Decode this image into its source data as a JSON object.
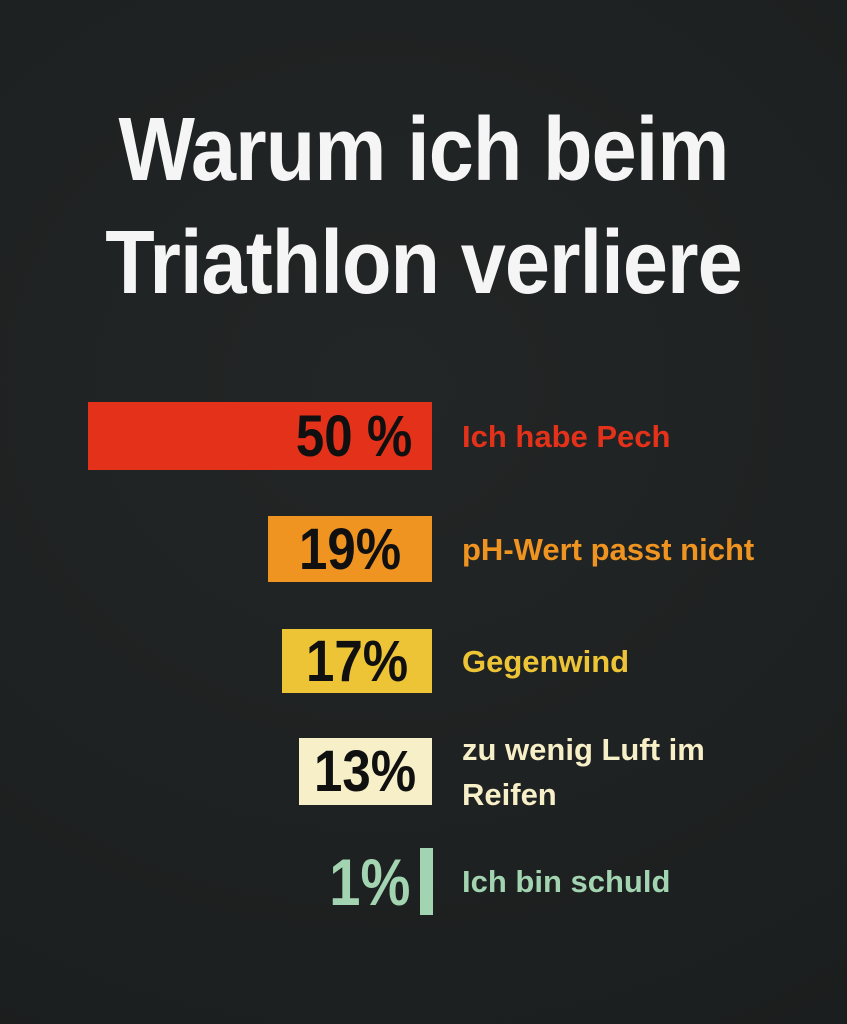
{
  "title": {
    "line1": "Warum ich beim",
    "line2": "Triathlon verliere",
    "color": "#f5f5f5"
  },
  "chart_data": {
    "type": "bar",
    "orientation": "horizontal",
    "title": "Warum ich beim Triathlon verliere",
    "unit": "%",
    "categories": [
      "Ich habe Pech",
      "pH-Wert passt nicht",
      "Gegenwind",
      "zu wenig Luft im Reifen",
      "Ich bin schuld"
    ],
    "values": [
      50,
      19,
      17,
      13,
      1
    ],
    "items": [
      {
        "value": 50,
        "value_label": "50 %",
        "label": "Ich habe Pech",
        "color": "#e4311a"
      },
      {
        "value": 19,
        "value_label": "19%",
        "label": "pH-Wert passt nicht",
        "color": "#f09421"
      },
      {
        "value": 17,
        "value_label": "17%",
        "label": "Gegenwind",
        "color": "#eec437"
      },
      {
        "value": 13,
        "value_label": "13%",
        "label": "zu wenig Luft im Reifen",
        "color": "#f7efc7"
      },
      {
        "value": 1,
        "value_label": "1%",
        "label": "Ich bin schuld",
        "color": "#a3d4b1"
      }
    ],
    "value_text_color": "#101010",
    "background_color": "#1f2222",
    "title_color": "#f5f5f5",
    "bars_right_aligned": true,
    "value_position": "inside-end",
    "axes": "none",
    "grid": false,
    "legend": "none"
  }
}
